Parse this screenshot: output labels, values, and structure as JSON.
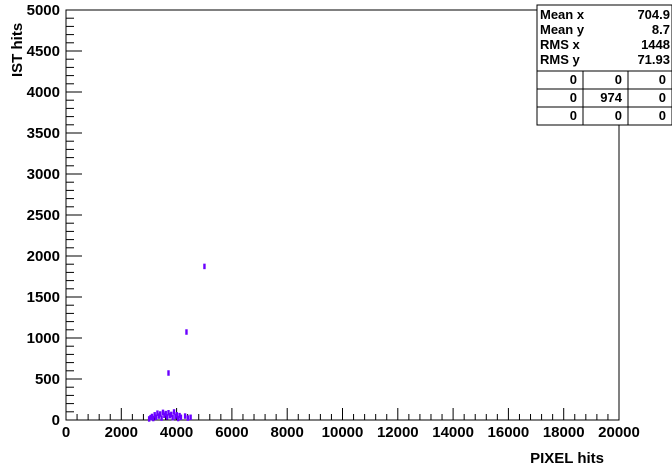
{
  "chart_data": {
    "type": "scatter",
    "title": "",
    "xlabel": "PIXEL hits",
    "ylabel": "IST hits",
    "xlim": [
      0,
      20000
    ],
    "ylim": [
      0,
      5000
    ],
    "x_ticks": [
      "0",
      "2000",
      "4000",
      "6000",
      "8000",
      "10000",
      "12000",
      "14000",
      "16000",
      "18000",
      "20000"
    ],
    "y_ticks": [
      "0",
      "500",
      "1000",
      "1500",
      "2000",
      "2500",
      "3000",
      "3500",
      "4000",
      "4500",
      "5000"
    ],
    "marker_color": "#6a00ff",
    "points": [
      {
        "x": 3000,
        "y": 10
      },
      {
        "x": 3050,
        "y": 25
      },
      {
        "x": 3100,
        "y": 40
      },
      {
        "x": 3150,
        "y": 15
      },
      {
        "x": 3200,
        "y": 60
      },
      {
        "x": 3250,
        "y": 30
      },
      {
        "x": 3300,
        "y": 80
      },
      {
        "x": 3350,
        "y": 45
      },
      {
        "x": 3400,
        "y": 70
      },
      {
        "x": 3450,
        "y": 20
      },
      {
        "x": 3500,
        "y": 90
      },
      {
        "x": 3550,
        "y": 55
      },
      {
        "x": 3600,
        "y": 75
      },
      {
        "x": 3650,
        "y": 35
      },
      {
        "x": 3700,
        "y": 85
      },
      {
        "x": 3750,
        "y": 50
      },
      {
        "x": 3800,
        "y": 65
      },
      {
        "x": 3850,
        "y": 25
      },
      {
        "x": 3900,
        "y": 95
      },
      {
        "x": 3950,
        "y": 40
      },
      {
        "x": 4000,
        "y": 60
      },
      {
        "x": 4050,
        "y": 15
      },
      {
        "x": 4100,
        "y": 50
      },
      {
        "x": 4150,
        "y": 30
      },
      {
        "x": 4300,
        "y": 45
      },
      {
        "x": 4400,
        "y": 20
      },
      {
        "x": 4500,
        "y": 30
      },
      {
        "x": 3700,
        "y": 570
      },
      {
        "x": 4350,
        "y": 1070
      },
      {
        "x": 5000,
        "y": 1870
      }
    ]
  },
  "stats": {
    "rows": [
      {
        "label": "Mean x",
        "value": "704.9"
      },
      {
        "label": "Mean y",
        "value": "8.7"
      },
      {
        "label": "RMS x",
        "value": "1448"
      },
      {
        "label": "RMS y",
        "value": "71.93"
      }
    ],
    "grid": [
      [
        "0",
        "0",
        "0"
      ],
      [
        "0",
        "974",
        "0"
      ],
      [
        "0",
        "0",
        "0"
      ]
    ]
  }
}
